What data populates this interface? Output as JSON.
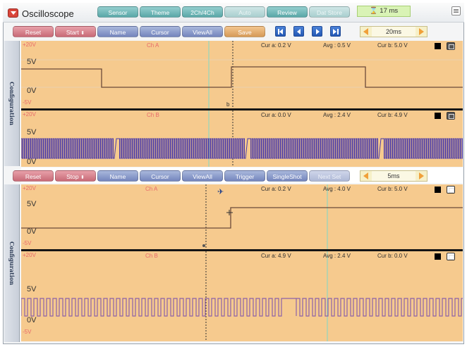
{
  "app": {
    "title": "Oscilloscope",
    "icon": "app-logo-icon"
  },
  "top_tabs": [
    "Sensor",
    "Theme",
    "2Ch/4Ch",
    "Auto",
    "Review",
    "Dat Store"
  ],
  "fps": {
    "value": "17 ms",
    "icon": "stopwatch-icon"
  },
  "panel1": {
    "buttons": {
      "reset": "Reset",
      "start": "Start",
      "name": "Name",
      "cursor": "Cursor",
      "viewall": "ViewAll",
      "save": "Save"
    },
    "timebase": "20ms",
    "sidebar": "Configuration",
    "ch_a": {
      "name": "Ch A",
      "top": "+20V",
      "five": "5V",
      "zero": "0V",
      "neg": "-5V",
      "cur_a": "Cur a: 0.2 V",
      "avg": "Avg : 0.5 V",
      "cur_b": "Cur b: 5.0 V",
      "marker_b": "b"
    },
    "ch_b": {
      "name": "Ch B",
      "top": "+20V",
      "five": "5V",
      "zero": "0V",
      "cur_a": "Cur a: 0.0 V",
      "avg": "Avg : 2.4 V",
      "cur_b": "Cur b: 4.9 V"
    }
  },
  "panel2": {
    "buttons": {
      "reset": "Reset",
      "stop": "Stop",
      "name": "Name",
      "cursor": "Cursor",
      "viewall": "ViewAll",
      "trigger": "Trigger",
      "singleshot": "SingleShot",
      "next": "Next Set"
    },
    "timebase": "5ms",
    "sidebar": "Configuration",
    "ch_a": {
      "name": "Ch A",
      "top": "+20V",
      "five": "5V",
      "zero": "0V",
      "neg": "-5V",
      "cur_a": "Cur a: 0.2 V",
      "avg": "Avg : 4.0 V",
      "cur_b": "Cur b: 5.0 V"
    },
    "ch_b": {
      "name": "Ch B",
      "top": "+20V",
      "five": "5V",
      "zero": "0V",
      "neg": "-5V",
      "cur_a": "Cur a: 4.9 V",
      "avg": "Avg : 2.4 V",
      "cur_b": "Cur b: 0.0 V"
    }
  },
  "colors": {
    "plot_bg": "#f6ca8e",
    "trace_a": "#6b4a3a",
    "trace_b_dense": "#4a3aa8",
    "trace_b_square": "#8c62a8",
    "cursor_cyan": "#7fd8c8",
    "label_red": "#e86a6a"
  }
}
